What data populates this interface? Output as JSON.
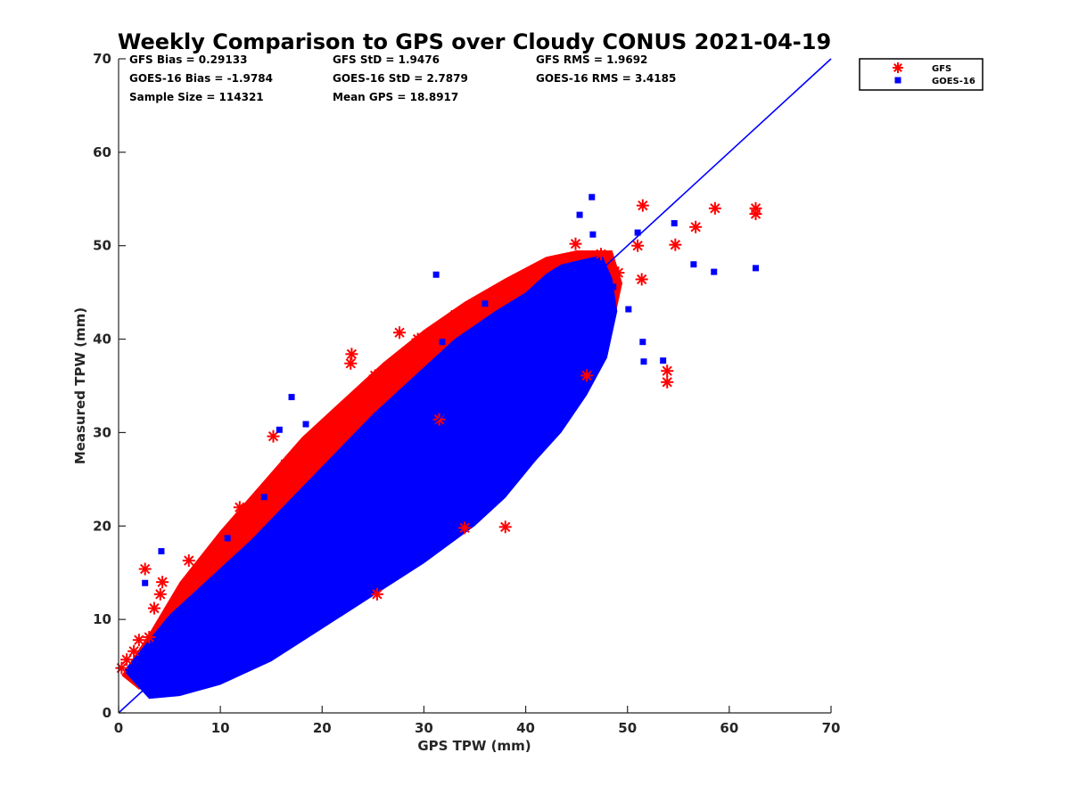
{
  "colors": {
    "gfs": "#ff0000",
    "goes16": "#0000ff",
    "axis": "#262626"
  },
  "chart_data": {
    "type": "scatter",
    "title": "Weekly Comparison to GPS over Cloudy CONUS 2021-04-19",
    "xlabel": "GPS TPW (mm)",
    "ylabel": "Measured TPW (mm)",
    "xlim": [
      0,
      70
    ],
    "ylim": [
      0,
      70
    ],
    "xticks": [
      "0",
      "10",
      "20",
      "30",
      "40",
      "50",
      "60",
      "70"
    ],
    "yticks": [
      "0",
      "10",
      "20",
      "30",
      "40",
      "50",
      "60",
      "70"
    ],
    "grid": false,
    "legend_position": "outside-top-right",
    "reference_line": {
      "x": [
        0,
        70
      ],
      "y": [
        0,
        70
      ]
    },
    "stats": [
      "GFS Bias = 0.29133",
      "GFS StD = 1.9476",
      "GFS RMS = 1.9692",
      "GOES-16 Bias = -1.9784",
      "GOES-16 StD = 2.7879",
      "GOES-16 RMS = 3.4185",
      "Sample Size = 114321",
      "Mean GPS = 18.8917"
    ],
    "series": [
      {
        "name": "GFS",
        "marker": "asterisk",
        "x": [
          0.3,
          0.8,
          1.5,
          2.0,
          2.6,
          3.0,
          3.5,
          4.1,
          4.3,
          6.9,
          11.9,
          14.2,
          15.2,
          16.4,
          18.4,
          20.8,
          22.8,
          22.9,
          24.1,
          25.2,
          25.4,
          27.6,
          29.4,
          33.1,
          34.0,
          38.0,
          31.5,
          44.9,
          46.0,
          47.4,
          49.1,
          51.0,
          51.5,
          51.4,
          53.9,
          53.9,
          54.7,
          56.7,
          58.6,
          62.6,
          62.6
        ],
        "y": [
          4.8,
          5.7,
          6.6,
          7.8,
          15.4,
          8.1,
          11.2,
          12.7,
          14.0,
          16.3,
          22.0,
          23.5,
          29.6,
          26.6,
          28.5,
          28.8,
          37.4,
          38.4,
          34.2,
          36.1,
          12.7,
          40.7,
          40.0,
          42.6,
          19.8,
          19.9,
          31.4,
          50.2,
          36.1,
          49.1,
          47.1,
          50.0,
          54.3,
          46.4,
          36.6,
          35.4,
          50.1,
          52.0,
          54.0,
          53.4,
          54.0
        ]
      },
      {
        "name": "GOES-16",
        "marker": "square",
        "x": [
          2.6,
          4.2,
          10.7,
          14.3,
          15.8,
          17.0,
          18.4,
          31.2,
          31.8,
          36.0,
          40.8,
          42.9,
          45.3,
          46.5,
          46.6,
          47.6,
          48.6,
          50.1,
          51.0,
          51.5,
          51.6,
          53.5,
          54.6,
          56.5,
          58.5,
          62.6
        ],
        "y": [
          13.9,
          17.3,
          18.7,
          23.1,
          30.3,
          33.8,
          30.9,
          46.9,
          39.7,
          43.8,
          42.5,
          31.3,
          53.3,
          55.2,
          51.2,
          44.4,
          45.6,
          43.2,
          51.4,
          39.7,
          37.6,
          37.7,
          52.4,
          48.0,
          47.2,
          47.6
        ]
      }
    ],
    "dense_cloud": {
      "series": "GOES-16",
      "polygon_x": [
        0.5,
        3.0,
        6.0,
        10.0,
        15.0,
        20.0,
        25.0,
        30.0,
        35.0,
        38.0,
        41.0,
        43.5,
        46.0,
        48.0,
        49.0,
        48.5,
        47.5,
        45.5,
        43.5,
        42.0,
        40.0,
        37.0,
        33.0,
        29.0,
        25.0,
        21.0,
        17.0,
        13.0,
        9.0,
        5.0,
        2.0
      ],
      "polygon_y": [
        4.5,
        1.5,
        1.8,
        3.0,
        5.5,
        9.0,
        12.5,
        16.0,
        20.0,
        23.0,
        27.0,
        30.0,
        34.0,
        38.0,
        43.0,
        46.5,
        49.0,
        48.5,
        48.0,
        47.0,
        45.0,
        43.0,
        40.0,
        36.0,
        32.0,
        27.5,
        23.0,
        18.5,
        14.5,
        10.5,
        6.5
      ]
    },
    "dense_fringe": {
      "series": "GFS",
      "polygon_x": [
        0.3,
        2.0,
        4.0,
        7.0,
        12.0,
        17.0,
        21.0,
        25.0,
        29.0,
        33.0,
        37.0,
        40.0,
        43.0,
        46.0,
        48.5,
        49.5,
        48.5,
        45.0,
        42.0,
        38.0,
        34.0,
        30.0,
        26.0,
        22.0,
        18.0,
        14.0,
        10.0,
        6.0,
        3.0
      ],
      "polygon_y": [
        4.0,
        2.5,
        3.0,
        4.5,
        7.0,
        10.5,
        14.0,
        17.0,
        20.5,
        24.0,
        28.0,
        31.0,
        34.0,
        37.0,
        41.0,
        46.0,
        49.5,
        49.5,
        48.8,
        46.5,
        44.0,
        41.0,
        37.5,
        33.5,
        29.5,
        24.5,
        19.5,
        14.0,
        8.5
      ]
    }
  },
  "legend": {
    "items": [
      {
        "label": "GFS",
        "marker": "asterisk-icon"
      },
      {
        "label": "GOES-16",
        "marker": "square-icon"
      }
    ]
  }
}
